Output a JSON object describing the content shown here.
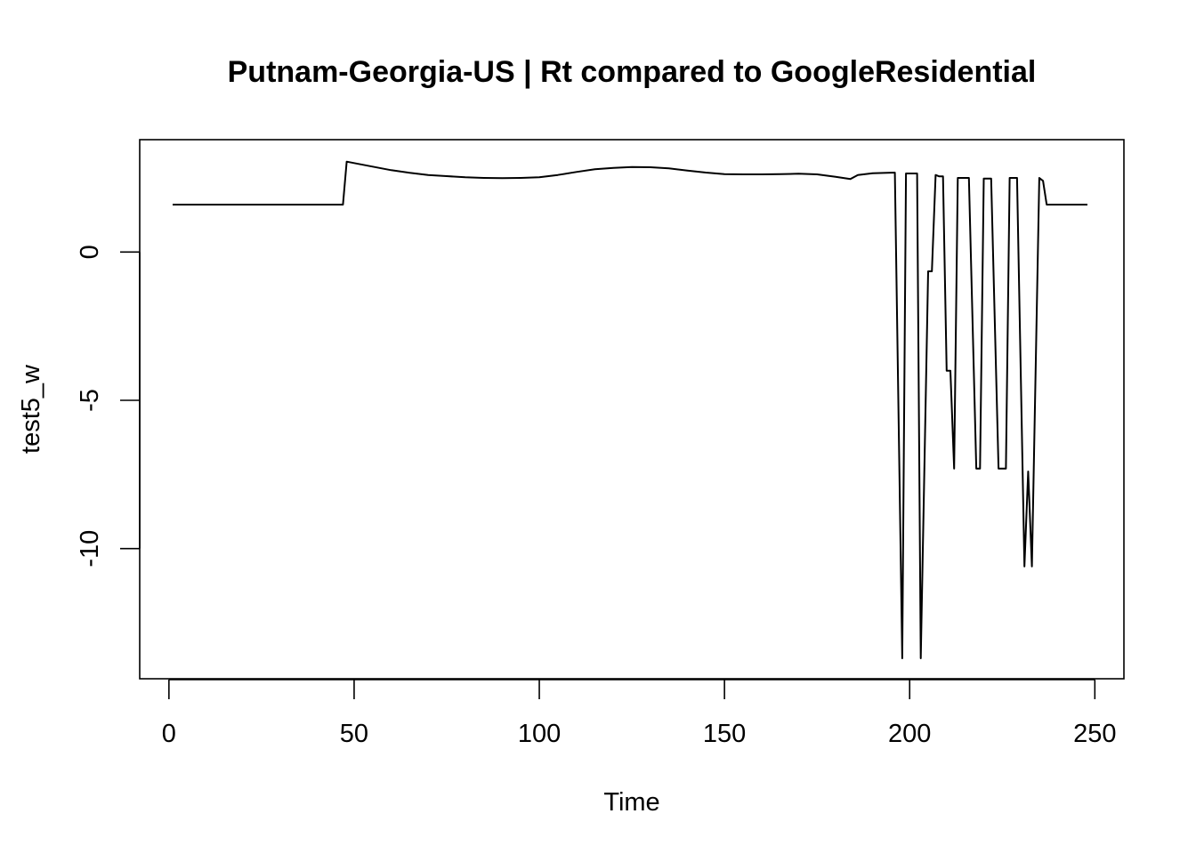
{
  "chart_data": {
    "type": "line",
    "title": "Putnam-Georgia-US | Rt compared to GoogleResidential",
    "xlabel": "Time",
    "ylabel": "test5_w",
    "xlim": [
      1,
      248
    ],
    "ylim": [
      -13.7,
      3.1
    ],
    "x_ticks": [
      0,
      50,
      100,
      150,
      200,
      250
    ],
    "y_ticks": [
      0,
      -5,
      -10
    ],
    "x_tick_labels": [
      "0",
      "50",
      "100",
      "150",
      "200",
      "250"
    ],
    "y_tick_labels": [
      "0",
      "-5",
      "-10"
    ],
    "grid": false,
    "legend": "none",
    "line_color": "#000000",
    "series": [
      {
        "points": [
          [
            1,
            1.6
          ],
          [
            47,
            1.6
          ],
          [
            48,
            3.05
          ],
          [
            50,
            3.0
          ],
          [
            55,
            2.88
          ],
          [
            60,
            2.76
          ],
          [
            65,
            2.67
          ],
          [
            70,
            2.6
          ],
          [
            75,
            2.56
          ],
          [
            80,
            2.52
          ],
          [
            85,
            2.5
          ],
          [
            90,
            2.49
          ],
          [
            95,
            2.5
          ],
          [
            100,
            2.52
          ],
          [
            105,
            2.6
          ],
          [
            110,
            2.7
          ],
          [
            115,
            2.79
          ],
          [
            120,
            2.84
          ],
          [
            125,
            2.87
          ],
          [
            130,
            2.86
          ],
          [
            135,
            2.82
          ],
          [
            140,
            2.75
          ],
          [
            145,
            2.68
          ],
          [
            150,
            2.63
          ],
          [
            155,
            2.62
          ],
          [
            160,
            2.62
          ],
          [
            165,
            2.63
          ],
          [
            170,
            2.64
          ],
          [
            175,
            2.62
          ],
          [
            180,
            2.54
          ],
          [
            184,
            2.46
          ],
          [
            186,
            2.6
          ],
          [
            190,
            2.66
          ],
          [
            196,
            2.68
          ],
          [
            196,
            2.68
          ],
          [
            198,
            -13.7
          ],
          [
            199,
            2.65
          ],
          [
            201,
            2.65
          ],
          [
            202,
            2.65
          ],
          [
            203,
            -13.7
          ],
          [
            205,
            -0.65
          ],
          [
            206,
            -0.65
          ],
          [
            207,
            2.6
          ],
          [
            208,
            2.55
          ],
          [
            209,
            2.55
          ],
          [
            210,
            -4.0
          ],
          [
            211,
            -4.0
          ],
          [
            212,
            -7.3
          ],
          [
            213,
            2.5
          ],
          [
            216,
            2.5
          ],
          [
            218,
            -7.3
          ],
          [
            219,
            -7.3
          ],
          [
            220,
            2.48
          ],
          [
            222,
            2.48
          ],
          [
            224,
            -7.3
          ],
          [
            226,
            -7.3
          ],
          [
            227,
            2.5
          ],
          [
            229,
            2.5
          ],
          [
            231,
            -10.6
          ],
          [
            232,
            -7.4
          ],
          [
            233,
            -10.6
          ],
          [
            235,
            2.5
          ],
          [
            236,
            2.4
          ],
          [
            237,
            1.6
          ],
          [
            248,
            1.6
          ]
        ]
      }
    ]
  }
}
